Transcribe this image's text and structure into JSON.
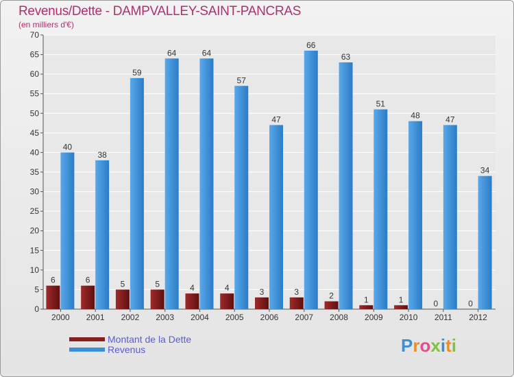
{
  "chart_data": {
    "type": "bar",
    "title": "Revenus/Dette - DAMPVALLEY-SAINT-PANCRAS",
    "subtitle": "(en milliers d'€)",
    "xlabel": "",
    "ylabel": "",
    "ylim": [
      0,
      70
    ],
    "yticks": [
      "0",
      "5",
      "10",
      "15",
      "20",
      "25",
      "30",
      "35",
      "40",
      "45",
      "50",
      "55",
      "60",
      "65",
      "70"
    ],
    "categories": [
      "2000",
      "2001",
      "2002",
      "2003",
      "2004",
      "2005",
      "2006",
      "2007",
      "2008",
      "2009",
      "2010",
      "2011",
      "2012"
    ],
    "series": [
      {
        "name": "Montant de la Dette",
        "color": "#8a1f1f",
        "values": [
          6,
          6,
          5,
          5,
          4,
          4,
          3,
          3,
          2,
          1,
          1,
          0,
          0
        ],
        "labels": [
          "6",
          "6",
          "5",
          "5",
          "4",
          "4",
          "3",
          "3",
          "2",
          "1",
          "1",
          "0",
          "0"
        ]
      },
      {
        "name": "Revenus",
        "color": "#3a8fd6",
        "values": [
          40,
          38,
          59,
          64,
          64,
          57,
          47,
          66,
          63,
          51,
          48,
          47,
          34
        ],
        "labels": [
          "40",
          "38",
          "59",
          "64",
          "64",
          "57",
          "47",
          "66",
          "63",
          "51",
          "48",
          "47",
          "34"
        ]
      }
    ],
    "legend": "bottom-left",
    "grid": true
  },
  "logo": {
    "text": [
      "P",
      "r",
      "o",
      "x",
      "i",
      "t",
      "i"
    ],
    "colors": [
      "#3a8fd6",
      "#f28c1e",
      "#e84a8a",
      "#7dc242",
      "#3a8fd6",
      "#f28c1e",
      "#7dc242"
    ]
  }
}
